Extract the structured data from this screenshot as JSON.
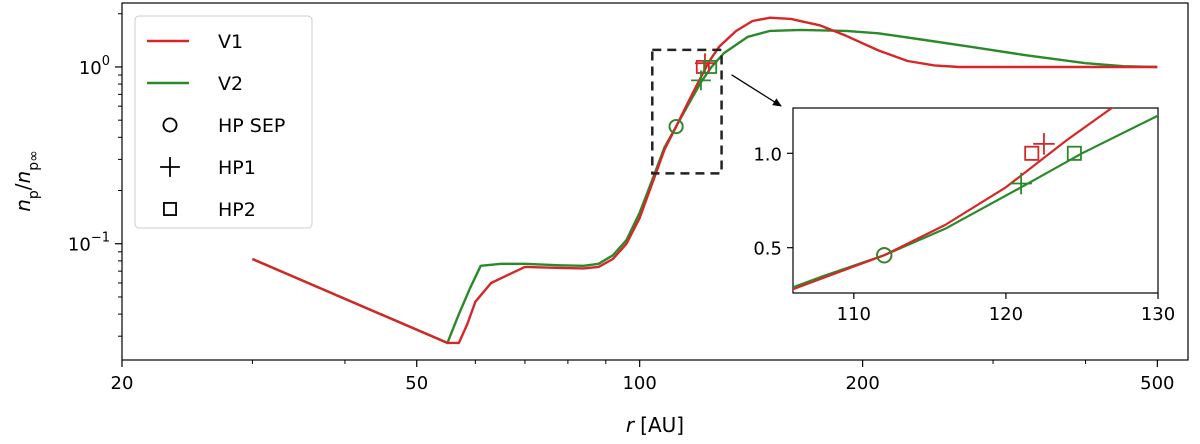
{
  "chart_data": {
    "type": "line",
    "xlabel_var": "r",
    "xlabel_unit": "[AU]",
    "ylabel_num": "n",
    "ylabel_num_sub": "p",
    "ylabel_den": "n",
    "ylabel_den_sub": "p∞",
    "xscale": "log",
    "yscale": "log",
    "xlim": [
      20,
      550
    ],
    "ylim": [
      0.022,
      2.3
    ],
    "xticks": [
      {
        "value": 20,
        "label": "20"
      },
      {
        "value": 50,
        "label": "50"
      },
      {
        "value": 100,
        "label": "100"
      },
      {
        "value": 200,
        "label": "200"
      },
      {
        "value": 500,
        "label": "500"
      }
    ],
    "yticks": [
      {
        "value": 0.1,
        "base": "10",
        "exp": "−1"
      },
      {
        "value": 1,
        "base": "10",
        "exp": "0"
      }
    ],
    "legend_position": "top-left",
    "legend": [
      {
        "label": "V1",
        "kind": "line",
        "color": "#d62728"
      },
      {
        "label": "V2",
        "kind": "line",
        "color": "#2a8a2a"
      },
      {
        "label": "HP SEP",
        "kind": "circle",
        "color": "#000000"
      },
      {
        "label": "HP1",
        "kind": "plus",
        "color": "#000000"
      },
      {
        "label": "HP2",
        "kind": "square",
        "color": "#000000"
      }
    ],
    "series": [
      {
        "name": "V1",
        "color": "#d62728",
        "x": [
          30,
          55,
          57,
          58.5,
          60,
          63,
          70,
          78,
          84,
          88,
          92,
          96,
          100,
          104,
          108,
          112,
          116,
          120,
          124,
          128,
          135,
          142,
          150,
          160,
          175,
          190,
          210,
          230,
          250,
          270,
          300,
          350,
          400,
          450,
          500
        ],
        "y": [
          0.082,
          0.0275,
          0.0275,
          0.035,
          0.047,
          0.06,
          0.074,
          0.073,
          0.0725,
          0.074,
          0.082,
          0.1,
          0.14,
          0.22,
          0.34,
          0.46,
          0.62,
          0.82,
          1.07,
          1.3,
          1.6,
          1.82,
          1.9,
          1.87,
          1.72,
          1.5,
          1.24,
          1.08,
          1.02,
          1.0,
          1.0,
          1.0,
          1.0,
          1.0,
          1.0
        ]
      },
      {
        "name": "V2",
        "color": "#2a8a2a",
        "x": [
          30,
          55,
          57,
          59,
          61,
          65,
          70,
          78,
          84,
          88,
          92,
          96,
          100,
          104,
          108,
          112,
          116,
          121,
          125,
          130,
          140,
          150,
          165,
          190,
          210,
          240,
          280,
          330,
          400,
          450,
          500
        ],
        "y": [
          0.082,
          0.0275,
          0.04,
          0.056,
          0.075,
          0.077,
          0.077,
          0.0755,
          0.075,
          0.077,
          0.086,
          0.105,
          0.15,
          0.23,
          0.35,
          0.46,
          0.6,
          0.82,
          1.0,
          1.2,
          1.48,
          1.6,
          1.62,
          1.6,
          1.55,
          1.43,
          1.3,
          1.17,
          1.05,
          1.01,
          1.0
        ]
      }
    ],
    "markers": [
      {
        "series": "V1",
        "kind": "circle",
        "x": 112,
        "y": 0.46
      },
      {
        "series": "V1",
        "kind": "plus",
        "x": 122.5,
        "y": 1.05
      },
      {
        "series": "V1",
        "kind": "square",
        "x": 121.7,
        "y": 1.0
      },
      {
        "series": "V2",
        "kind": "circle",
        "x": 112,
        "y": 0.46
      },
      {
        "series": "V2",
        "kind": "plus",
        "x": 121,
        "y": 0.84
      },
      {
        "series": "V2",
        "kind": "square",
        "x": 124.5,
        "y": 1.0
      }
    ],
    "zoom_box": {
      "xlim": [
        104,
        129
      ],
      "ylim": [
        0.25,
        1.25
      ]
    },
    "inset": {
      "xscale": "linear",
      "yscale": "linear",
      "xlim": [
        106,
        130
      ],
      "ylim": [
        0.26,
        1.24
      ],
      "xticks": [
        {
          "value": 110,
          "label": "110"
        },
        {
          "value": 120,
          "label": "120"
        },
        {
          "value": 130,
          "label": "130"
        }
      ],
      "yticks": [
        {
          "value": 0.5,
          "label": "0.5"
        },
        {
          "value": 1.0,
          "label": "1.0"
        }
      ]
    }
  }
}
